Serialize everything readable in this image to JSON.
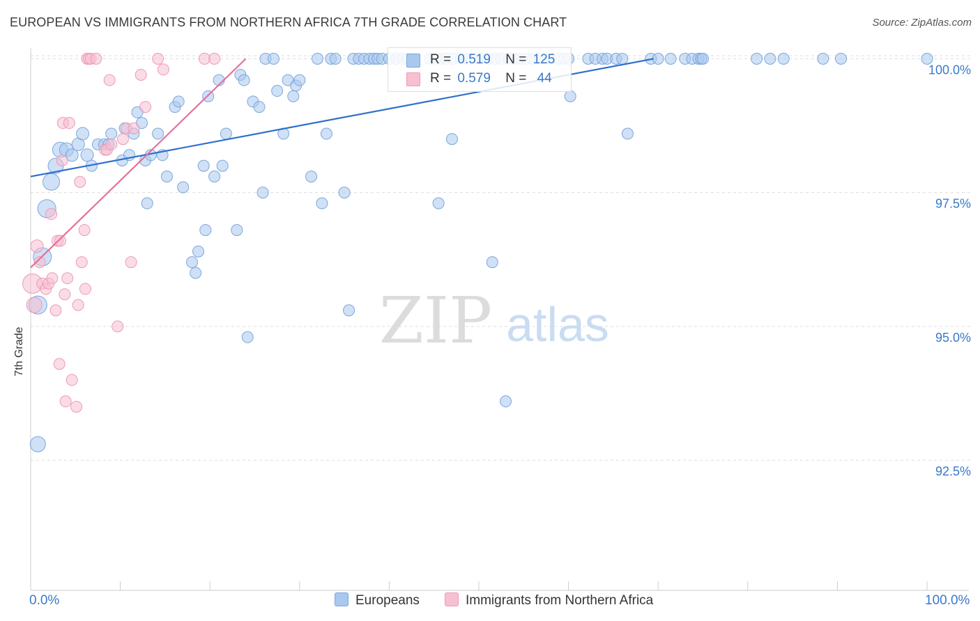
{
  "header": {
    "title": "EUROPEAN VS IMMIGRANTS FROM NORTHERN AFRICA 7TH GRADE CORRELATION CHART",
    "source": "Source: ZipAtlas.com"
  },
  "watermark": {
    "zip": "ZIP",
    "atlas": "atlas"
  },
  "legend": {
    "europeans": {
      "r_label": "R =",
      "r_value": "0.519",
      "n_label": "N =",
      "n_value": "125"
    },
    "immigrants": {
      "r_label": "R =",
      "r_value": "0.579",
      "n_label": "N =",
      "n_value": "44"
    }
  },
  "bottom_legend": {
    "europeans": "Europeans",
    "immigrants": "Immigrants from Northern Africa"
  },
  "colors": {
    "europeans_fill": "#a9c8ee",
    "europeans_stroke": "#7aa6dd",
    "europeans_line": "#2f6fcc",
    "immigrants_fill": "#f6c0d1",
    "immigrants_stroke": "#ee9ab6",
    "immigrants_line": "#e4709a",
    "tick_text": "#3a78c9",
    "grid": "#dddddd"
  },
  "chart_data": {
    "type": "scatter",
    "title": "EUROPEAN VS IMMIGRANTS FROM NORTHERN AFRICA 7TH GRADE CORRELATION CHART",
    "xlabel": "",
    "ylabel": "7th Grade",
    "xlim": [
      0,
      100
    ],
    "ylim": [
      90.2,
      100.2
    ],
    "x_tick_labels": [
      "0.0%",
      "100.0%"
    ],
    "y_ticks": [
      92.5,
      95.0,
      97.5,
      100.0
    ],
    "y_tick_labels": [
      "92.5%",
      "95.0%",
      "97.5%",
      "100.0%"
    ],
    "grid": true,
    "legend_position": "top-center",
    "series": [
      {
        "name": "Europeans",
        "r": 0.519,
        "n": 125,
        "trend": {
          "x": [
            0,
            69.5
          ],
          "y": [
            97.8,
            100.0
          ]
        },
        "points": [
          [
            0.8,
            92.8,
            11
          ],
          [
            0.8,
            95.4,
            13
          ],
          [
            1.3,
            96.3,
            13
          ],
          [
            1.8,
            97.2,
            13
          ],
          [
            2.3,
            97.7,
            12
          ],
          [
            2.8,
            98.0,
            11
          ],
          [
            3.3,
            98.3,
            11
          ],
          [
            4.0,
            98.3,
            10
          ],
          [
            4.6,
            98.2,
            9
          ],
          [
            5.3,
            98.4,
            9
          ],
          [
            5.8,
            98.6,
            9
          ],
          [
            6.3,
            98.2,
            9
          ],
          [
            6.8,
            98.0,
            8
          ],
          [
            7.5,
            98.4,
            8
          ],
          [
            8.2,
            98.4,
            8
          ],
          [
            8.7,
            98.4,
            8
          ],
          [
            9.0,
            98.6,
            8
          ],
          [
            10.2,
            98.1,
            8
          ],
          [
            10.5,
            98.7,
            8
          ],
          [
            11.0,
            98.2,
            8
          ],
          [
            11.5,
            98.6,
            8
          ],
          [
            11.9,
            99.0,
            8
          ],
          [
            12.4,
            98.8,
            8
          ],
          [
            12.8,
            98.1,
            8
          ],
          [
            13.4,
            98.2,
            8
          ],
          [
            14.2,
            98.6,
            8
          ],
          [
            14.7,
            98.2,
            8
          ],
          [
            15.2,
            97.8,
            8
          ],
          [
            13.0,
            97.3,
            8
          ],
          [
            16.1,
            99.1,
            8
          ],
          [
            16.5,
            99.2,
            8
          ],
          [
            17.0,
            97.6,
            8
          ],
          [
            18.0,
            96.2,
            8
          ],
          [
            18.4,
            96.0,
            8
          ],
          [
            18.7,
            96.4,
            8
          ],
          [
            19.3,
            98.0,
            8
          ],
          [
            19.5,
            96.8,
            8
          ],
          [
            19.8,
            99.3,
            8
          ],
          [
            20.5,
            97.8,
            8
          ],
          [
            21.0,
            99.6,
            8
          ],
          [
            21.4,
            98.0,
            8
          ],
          [
            21.8,
            98.6,
            8
          ],
          [
            23.0,
            96.8,
            8
          ],
          [
            23.4,
            99.7,
            8
          ],
          [
            23.8,
            99.6,
            8
          ],
          [
            24.2,
            94.8,
            8
          ],
          [
            24.8,
            99.2,
            8
          ],
          [
            25.5,
            99.1,
            8
          ],
          [
            25.9,
            97.5,
            8
          ],
          [
            26.2,
            100.0,
            8
          ],
          [
            27.1,
            100.0,
            8
          ],
          [
            27.5,
            99.4,
            8
          ],
          [
            28.2,
            98.6,
            8
          ],
          [
            28.7,
            99.6,
            8
          ],
          [
            29.3,
            99.3,
            8
          ],
          [
            29.6,
            99.5,
            8
          ],
          [
            30.0,
            99.6,
            8
          ],
          [
            31.3,
            97.8,
            8
          ],
          [
            32.0,
            100.0,
            8
          ],
          [
            32.5,
            97.3,
            8
          ],
          [
            33.0,
            98.6,
            8
          ],
          [
            33.5,
            100.0,
            8
          ],
          [
            34.0,
            100.0,
            8
          ],
          [
            35.0,
            97.5,
            8
          ],
          [
            35.5,
            95.3,
            8
          ],
          [
            36.0,
            100.0,
            8
          ],
          [
            36.6,
            100.0,
            8
          ],
          [
            37.2,
            100.0,
            8
          ],
          [
            37.8,
            100.0,
            8
          ],
          [
            38.3,
            100.0,
            8
          ],
          [
            38.7,
            100.0,
            8
          ],
          [
            39.2,
            100.0,
            8
          ],
          [
            40.0,
            100.0,
            8
          ],
          [
            40.8,
            100.0,
            8
          ],
          [
            41.5,
            100.0,
            8
          ],
          [
            42.1,
            100.0,
            8
          ],
          [
            42.8,
            100.0,
            8
          ],
          [
            44.5,
            100.0,
            8
          ],
          [
            45.2,
            100.0,
            8
          ],
          [
            45.8,
            100.0,
            8
          ],
          [
            46.3,
            100.0,
            8
          ],
          [
            47.1,
            100.0,
            8
          ],
          [
            48.0,
            100.0,
            8
          ],
          [
            48.6,
            100.0,
            8
          ],
          [
            49.3,
            100.0,
            8
          ],
          [
            50.2,
            100.0,
            8
          ],
          [
            51.0,
            100.0,
            8
          ],
          [
            51.8,
            100.0,
            8
          ],
          [
            52.5,
            100.0,
            8
          ],
          [
            53.3,
            100.0,
            8
          ],
          [
            54.0,
            100.0,
            8
          ],
          [
            54.6,
            100.0,
            8
          ],
          [
            55.3,
            100.0,
            8
          ],
          [
            56.0,
            100.0,
            8
          ],
          [
            56.7,
            100.0,
            8
          ],
          [
            57.4,
            100.0,
            8
          ],
          [
            58.0,
            100.0,
            8
          ],
          [
            58.8,
            100.0,
            8
          ],
          [
            59.5,
            100.0,
            8
          ],
          [
            60.0,
            100.0,
            8
          ],
          [
            62.2,
            100.0,
            8
          ],
          [
            63.0,
            100.0,
            8
          ],
          [
            63.8,
            100.0,
            8
          ],
          [
            64.3,
            100.0,
            8
          ],
          [
            65.3,
            100.0,
            8
          ],
          [
            66.0,
            100.0,
            8
          ],
          [
            69.2,
            100.0,
            8
          ],
          [
            70.0,
            100.0,
            8
          ],
          [
            71.4,
            100.0,
            8
          ],
          [
            73.0,
            100.0,
            8
          ],
          [
            73.8,
            100.0,
            8
          ],
          [
            74.5,
            100.0,
            8
          ],
          [
            74.8,
            100.0,
            8
          ],
          [
            75.0,
            100.0,
            8
          ],
          [
            81.0,
            100.0,
            8
          ],
          [
            82.5,
            100.0,
            8
          ],
          [
            84.0,
            100.0,
            8
          ],
          [
            88.4,
            100.0,
            8
          ],
          [
            90.4,
            100.0,
            8
          ],
          [
            100.0,
            100.0,
            8
          ],
          [
            60.2,
            99.3,
            8
          ],
          [
            66.6,
            98.6,
            8
          ],
          [
            47.0,
            98.5,
            8
          ],
          [
            45.5,
            97.3,
            8
          ],
          [
            51.5,
            96.2,
            8
          ],
          [
            53.0,
            93.6,
            8
          ]
        ]
      },
      {
        "name": "Immigrants from Northern Africa",
        "r": 0.579,
        "n": 44,
        "trend": {
          "x": [
            0,
            24.0
          ],
          "y": [
            96.1,
            100.0
          ]
        },
        "points": [
          [
            0.2,
            95.8,
            14
          ],
          [
            0.4,
            95.4,
            11
          ],
          [
            0.7,
            96.5,
            9
          ],
          [
            1.0,
            96.2,
            8
          ],
          [
            1.3,
            95.8,
            8
          ],
          [
            1.7,
            95.7,
            8
          ],
          [
            2.0,
            95.8,
            8
          ],
          [
            2.3,
            97.1,
            8
          ],
          [
            2.4,
            95.9,
            8
          ],
          [
            2.8,
            95.3,
            8
          ],
          [
            3.0,
            96.6,
            8
          ],
          [
            3.3,
            96.6,
            8
          ],
          [
            3.5,
            98.1,
            8
          ],
          [
            3.6,
            98.8,
            8
          ],
          [
            3.8,
            95.6,
            8
          ],
          [
            4.1,
            95.9,
            8
          ],
          [
            4.3,
            98.8,
            8
          ],
          [
            4.6,
            94.0,
            8
          ],
          [
            5.1,
            93.5,
            8
          ],
          [
            5.3,
            95.4,
            8
          ],
          [
            5.5,
            97.7,
            8
          ],
          [
            5.7,
            96.2,
            8
          ],
          [
            6.0,
            96.8,
            8
          ],
          [
            6.1,
            95.7,
            8
          ],
          [
            6.3,
            100.0,
            8
          ],
          [
            6.5,
            100.0,
            8
          ],
          [
            6.7,
            100.0,
            8
          ],
          [
            7.3,
            100.0,
            8
          ],
          [
            8.3,
            98.3,
            8
          ],
          [
            8.5,
            98.3,
            8
          ],
          [
            8.8,
            99.6,
            8
          ],
          [
            9.0,
            98.4,
            8
          ],
          [
            9.7,
            95.0,
            8
          ],
          [
            10.3,
            98.5,
            8
          ],
          [
            10.7,
            98.7,
            8
          ],
          [
            11.2,
            96.2,
            8
          ],
          [
            11.5,
            98.7,
            8
          ],
          [
            12.3,
            99.7,
            8
          ],
          [
            12.8,
            99.1,
            8
          ],
          [
            14.2,
            100.0,
            8
          ],
          [
            14.8,
            99.8,
            8
          ],
          [
            19.4,
            100.0,
            8
          ],
          [
            20.5,
            100.0,
            8
          ],
          [
            3.2,
            94.3,
            8
          ],
          [
            3.9,
            93.6,
            8
          ]
        ]
      }
    ]
  }
}
